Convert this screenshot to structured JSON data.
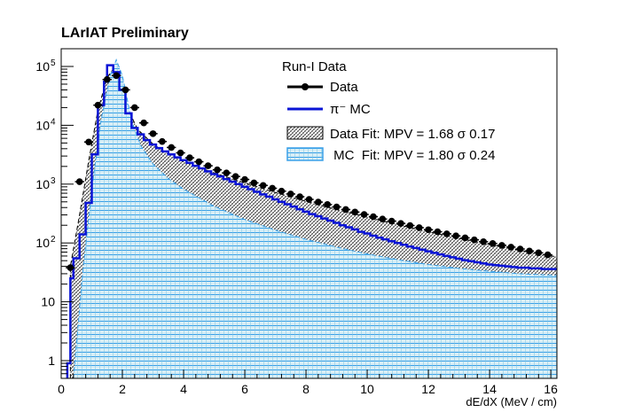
{
  "chart_data": {
    "type": "histogram",
    "title": "LArIAT Preliminary",
    "xlabel": "dE/dX (MeV / cm)",
    "ylabel": "",
    "xlim": [
      0,
      16.2
    ],
    "ylim": [
      0.5,
      200000
    ],
    "log_y": true,
    "grid": false,
    "legend_position": "top-right",
    "legend": {
      "header": "Run-I Data",
      "entries": [
        {
          "label": "Data",
          "style": "marker-line"
        },
        {
          "label": "π⁻ MC",
          "style": "line"
        },
        {
          "label": "Data Fit: MPV = 1.68 σ 0.17",
          "style": "hatch-black"
        },
        {
          "label": " MC  Fit: MPV = 1.80 σ 0.24",
          "style": "hatch-blue"
        }
      ]
    },
    "x_ticks": [
      0,
      2,
      4,
      6,
      8,
      10,
      12,
      14,
      16
    ],
    "y_ticks": [
      {
        "value": 1,
        "label": "1"
      },
      {
        "value": 10,
        "label": "10"
      },
      {
        "value": 100,
        "label": "10",
        "exp": "2"
      },
      {
        "value": 1000,
        "label": "10",
        "exp": "3"
      },
      {
        "value": 10000,
        "label": "10",
        "exp": "4"
      },
      {
        "value": 100000,
        "label": "10",
        "exp": "5"
      }
    ],
    "series": [
      {
        "name": "Data",
        "kind": "points",
        "color": "#000000",
        "x": [
          0.3,
          0.6,
          0.9,
          1.2,
          1.5,
          1.8,
          2.1,
          2.4,
          2.7,
          3.0,
          3.3,
          3.6,
          3.9,
          4.2,
          4.5,
          4.8,
          5.1,
          5.4,
          5.7,
          6.0,
          6.3,
          6.6,
          6.9,
          7.2,
          7.5,
          7.8,
          8.1,
          8.4,
          8.7,
          9.0,
          9.3,
          9.6,
          9.9,
          10.2,
          10.5,
          10.8,
          11.1,
          11.4,
          11.7,
          12.0,
          12.3,
          12.6,
          12.9,
          13.2,
          13.5,
          13.8,
          14.1,
          14.4,
          14.7,
          15.0,
          15.3,
          15.6,
          15.9
        ],
        "y": [
          38,
          1100,
          5200,
          22000,
          60000,
          70000,
          40000,
          20000,
          11000,
          7200,
          5300,
          4200,
          3400,
          2800,
          2400,
          2050,
          1750,
          1550,
          1350,
          1200,
          1050,
          950,
          850,
          760,
          680,
          610,
          550,
          495,
          450,
          410,
          370,
          335,
          305,
          280,
          255,
          235,
          215,
          198,
          182,
          168,
          155,
          143,
          132,
          122,
          113,
          105,
          98,
          91,
          85,
          79,
          73,
          68,
          63
        ]
      },
      {
        "name": "π⁻ MC",
        "kind": "step",
        "color": "#0a14d6",
        "bins": [
          [
            0.2,
            0.9
          ],
          [
            0.3,
            25
          ],
          [
            0.4,
            55
          ],
          [
            0.6,
            140
          ],
          [
            0.8,
            480
          ],
          [
            1.0,
            3200
          ],
          [
            1.2,
            22000
          ],
          [
            1.4,
            55000
          ],
          [
            1.5,
            105000
          ],
          [
            1.7,
            80000
          ],
          [
            1.9,
            40000
          ],
          [
            2.1,
            16000
          ],
          [
            2.3,
            9000
          ],
          [
            2.5,
            7000
          ],
          [
            2.7,
            5600
          ],
          [
            2.9,
            4700
          ],
          [
            3.1,
            4100
          ],
          [
            3.3,
            3600
          ],
          [
            3.5,
            3200
          ],
          [
            3.7,
            2850
          ],
          [
            3.9,
            2550
          ],
          [
            4.1,
            2300
          ],
          [
            4.3,
            2050
          ],
          [
            4.5,
            1850
          ],
          [
            4.7,
            1650
          ],
          [
            4.9,
            1480
          ],
          [
            5.1,
            1350
          ],
          [
            5.3,
            1220
          ],
          [
            5.5,
            1100
          ],
          [
            5.7,
            1000
          ],
          [
            5.9,
            900
          ],
          [
            6.1,
            820
          ],
          [
            6.3,
            740
          ],
          [
            6.5,
            670
          ],
          [
            6.7,
            610
          ],
          [
            6.9,
            550
          ],
          [
            7.1,
            500
          ],
          [
            7.3,
            455
          ],
          [
            7.5,
            415
          ],
          [
            7.7,
            375
          ],
          [
            7.9,
            340
          ],
          [
            8.1,
            310
          ],
          [
            8.3,
            285
          ],
          [
            8.5,
            260
          ],
          [
            8.7,
            240
          ],
          [
            8.9,
            220
          ],
          [
            9.1,
            200
          ],
          [
            9.3,
            185
          ],
          [
            9.5,
            170
          ],
          [
            9.7,
            155
          ],
          [
            9.9,
            145
          ],
          [
            10.1,
            133
          ],
          [
            10.3,
            123
          ],
          [
            10.5,
            115
          ],
          [
            10.7,
            107
          ],
          [
            10.9,
            100
          ],
          [
            11.1,
            93
          ],
          [
            11.3,
            87
          ],
          [
            11.5,
            82
          ],
          [
            11.7,
            77
          ],
          [
            11.9,
            72
          ],
          [
            12.1,
            68
          ],
          [
            12.3,
            64
          ],
          [
            12.5,
            60
          ],
          [
            12.7,
            57
          ],
          [
            12.9,
            54
          ],
          [
            13.1,
            51
          ],
          [
            13.3,
            49
          ],
          [
            13.5,
            47
          ],
          [
            13.7,
            45
          ],
          [
            13.9,
            43
          ],
          [
            14.1,
            42
          ],
          [
            14.3,
            41
          ],
          [
            14.5,
            40
          ],
          [
            14.7,
            39
          ],
          [
            14.9,
            38
          ],
          [
            15.1,
            38
          ],
          [
            15.3,
            37
          ],
          [
            15.5,
            37
          ],
          [
            15.7,
            36
          ],
          [
            15.9,
            36
          ],
          [
            16.2,
            36
          ]
        ]
      },
      {
        "name": "Data Fit",
        "kind": "band",
        "color": "#000000",
        "x": [
          0.3,
          0.6,
          0.9,
          1.2,
          1.5,
          1.7,
          1.9,
          2.2,
          2.5,
          3.0,
          3.5,
          4.0,
          5.0,
          6.0,
          7.0,
          8.0,
          9.0,
          10.0,
          11.0,
          12.0,
          13.0,
          14.0,
          15.0,
          16.2
        ],
        "y": [
          40,
          300,
          2500,
          18000,
          65000,
          90000,
          60000,
          18000,
          8500,
          4800,
          3200,
          2400,
          1550,
          1050,
          720,
          510,
          370,
          275,
          205,
          155,
          120,
          95,
          75,
          58
        ]
      },
      {
        "name": "MC Fit",
        "kind": "band",
        "color": "#3aa0e8",
        "x": [
          0.4,
          0.7,
          1.0,
          1.3,
          1.6,
          1.8,
          2.0,
          2.3,
          2.6,
          3.0,
          3.5,
          4.0,
          5.0,
          6.0,
          7.0,
          8.0,
          9.0,
          10.0,
          11.0,
          12.0,
          13.0,
          14.0,
          15.0,
          16.2
        ],
        "y": [
          0.5,
          30,
          800,
          12000,
          70000,
          130000,
          70000,
          12000,
          4500,
          2200,
          1250,
          820,
          420,
          250,
          165,
          115,
          85,
          65,
          52,
          43,
          37,
          33,
          30,
          28
        ]
      }
    ]
  }
}
